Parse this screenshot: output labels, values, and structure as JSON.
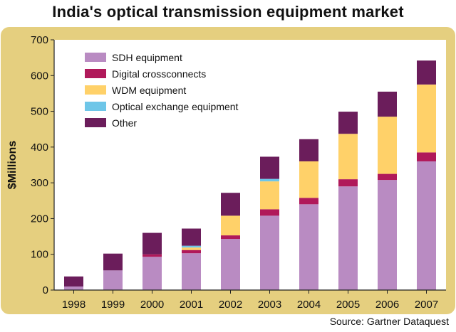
{
  "chart_data": {
    "type": "bar",
    "stacked": true,
    "title": "India's optical transmission equipment market",
    "source": "Source: Gartner Dataquest",
    "ylabel": "$Millions",
    "xlabel": "",
    "ylim": [
      0,
      700
    ],
    "yticks": [
      0,
      100,
      200,
      300,
      400,
      500,
      600,
      700
    ],
    "grid": false,
    "legend_position": "top-left",
    "categories": [
      "1998",
      "1999",
      "2000",
      "2001",
      "2002",
      "2003",
      "2004",
      "2005",
      "2006",
      "2007"
    ],
    "series": [
      {
        "name": "SDH equipment",
        "color": "#b98bc2",
        "values": [
          10,
          55,
          93,
          103,
          143,
          208,
          240,
          290,
          308,
          360
        ]
      },
      {
        "name": "Digital crossconnects",
        "color": "#b0195a",
        "values": [
          0,
          0,
          7,
          9,
          10,
          18,
          18,
          20,
          17,
          25
        ]
      },
      {
        "name": "WDM equipment",
        "color": "#ffd169",
        "values": [
          0,
          0,
          0,
          7,
          55,
          78,
          102,
          127,
          160,
          190
        ]
      },
      {
        "name": "Optical exchange equipment",
        "color": "#6ec6e8",
        "values": [
          0,
          0,
          0,
          5,
          0,
          7,
          0,
          0,
          0,
          0
        ]
      },
      {
        "name": "Other",
        "color": "#6b1d5b",
        "values": [
          28,
          47,
          60,
          48,
          64,
          62,
          62,
          62,
          70,
          67
        ]
      }
    ]
  },
  "style": {
    "frame_color": "#e5cf7f",
    "plot_background": "#ffffff",
    "axis_color": "#222222"
  }
}
